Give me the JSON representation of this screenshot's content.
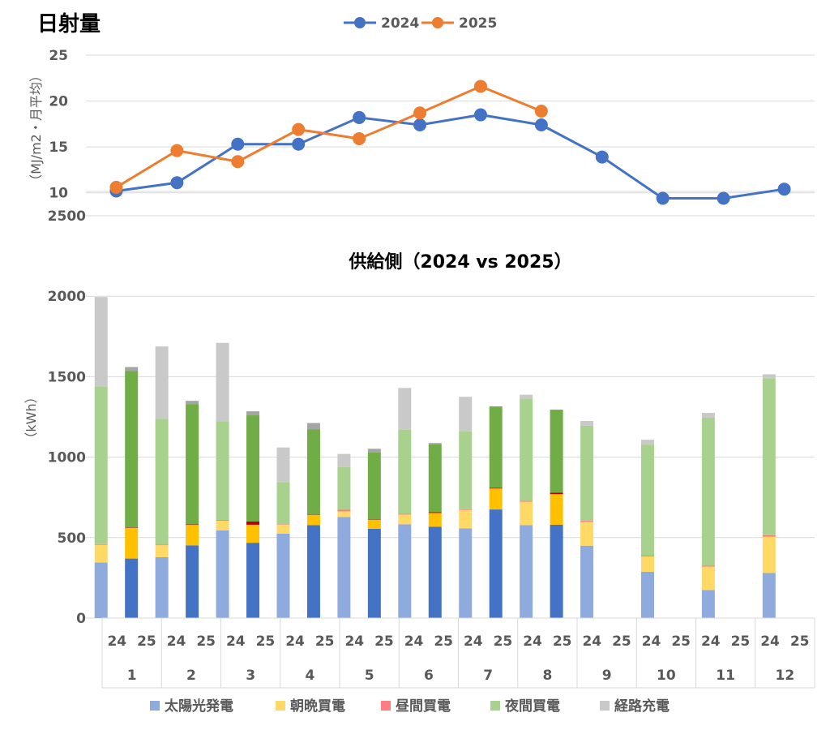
{
  "chart_data": [
    {
      "type": "line",
      "title": "日射量",
      "ylabel": "（MJ/m2・月平均）",
      "ylim": [
        7.5,
        25
      ],
      "y_ticks": [
        "25",
        "20",
        "15",
        "10"
      ],
      "x": [
        1,
        2,
        3,
        4,
        5,
        6,
        7,
        8,
        9,
        10,
        11,
        12
      ],
      "grid": true,
      "legend_position": "top",
      "series": [
        {
          "name": "2024",
          "color": "#4472C4",
          "values": [
            10.2,
            11.1,
            15.3,
            15.3,
            18.2,
            17.4,
            18.5,
            17.4,
            13.9,
            9.4,
            9.4,
            10.4
          ]
        },
        {
          "name": "2025",
          "color": "#ED7D31",
          "values": [
            10.6,
            14.6,
            13.4,
            16.9,
            15.9,
            18.7,
            21.6,
            18.9,
            null,
            null,
            null,
            null
          ]
        }
      ]
    },
    {
      "type": "bar",
      "stacked": true,
      "title": "供給側（2024 vs 2025）",
      "ylabel": "（kWh）",
      "ylim": [
        0,
        2500
      ],
      "y_ticks": [
        "2500",
        "2000",
        "1500",
        "1000",
        "500",
        "0"
      ],
      "grid": true,
      "legend_position": "bottom",
      "categories": [
        "1",
        "2",
        "3",
        "4",
        "5",
        "6",
        "7",
        "8",
        "9",
        "10",
        "11",
        "12"
      ],
      "sub_categories": [
        "24",
        "25"
      ],
      "series": [
        {
          "name": "太陽光発電",
          "color": "#8FAADC",
          "color_2025": "#4472C4",
          "values_2024": [
            345,
            378,
            545,
            525,
            628,
            583,
            557,
            578,
            450,
            288,
            175,
            280
          ],
          "values_2025": [
            370,
            452,
            468,
            578,
            555,
            568,
            675,
            580,
            null,
            null,
            null,
            null
          ]
        },
        {
          "name": "朝晩買電",
          "color": "#FFD966",
          "color_2025": "#FFC000",
          "values_2024": [
            110,
            75,
            60,
            55,
            35,
            60,
            115,
            145,
            150,
            95,
            145,
            225
          ],
          "values_2025": [
            190,
            127,
            112,
            62,
            55,
            85,
            130,
            190,
            null,
            null,
            null,
            null
          ]
        },
        {
          "name": "昼間買電",
          "color": "#FF7C80",
          "color_2025": "#C00000",
          "values_2024": [
            5,
            5,
            5,
            3,
            10,
            5,
            5,
            5,
            5,
            5,
            5,
            10
          ],
          "values_2025": [
            3,
            3,
            20,
            2,
            2,
            5,
            5,
            10,
            null,
            null,
            null,
            null
          ]
        },
        {
          "name": "夜間買電",
          "color": "#A9D18E",
          "color_2025": "#70AD47",
          "values_2024": [
            980,
            780,
            612,
            262,
            265,
            522,
            483,
            635,
            590,
            690,
            920,
            975
          ],
          "values_2025": [
            972,
            748,
            660,
            530,
            418,
            422,
            505,
            515,
            null,
            null,
            null,
            null
          ]
        },
        {
          "name": "経路充電",
          "color": "#C9C9C9",
          "color_2025": "#A5A5A5",
          "values_2024": [
            555,
            450,
            488,
            215,
            82,
            260,
            215,
            25,
            30,
            30,
            30,
            25
          ],
          "values_2025": [
            25,
            20,
            25,
            40,
            22,
            8,
            0,
            0,
            null,
            null,
            null,
            null
          ]
        }
      ]
    }
  ]
}
